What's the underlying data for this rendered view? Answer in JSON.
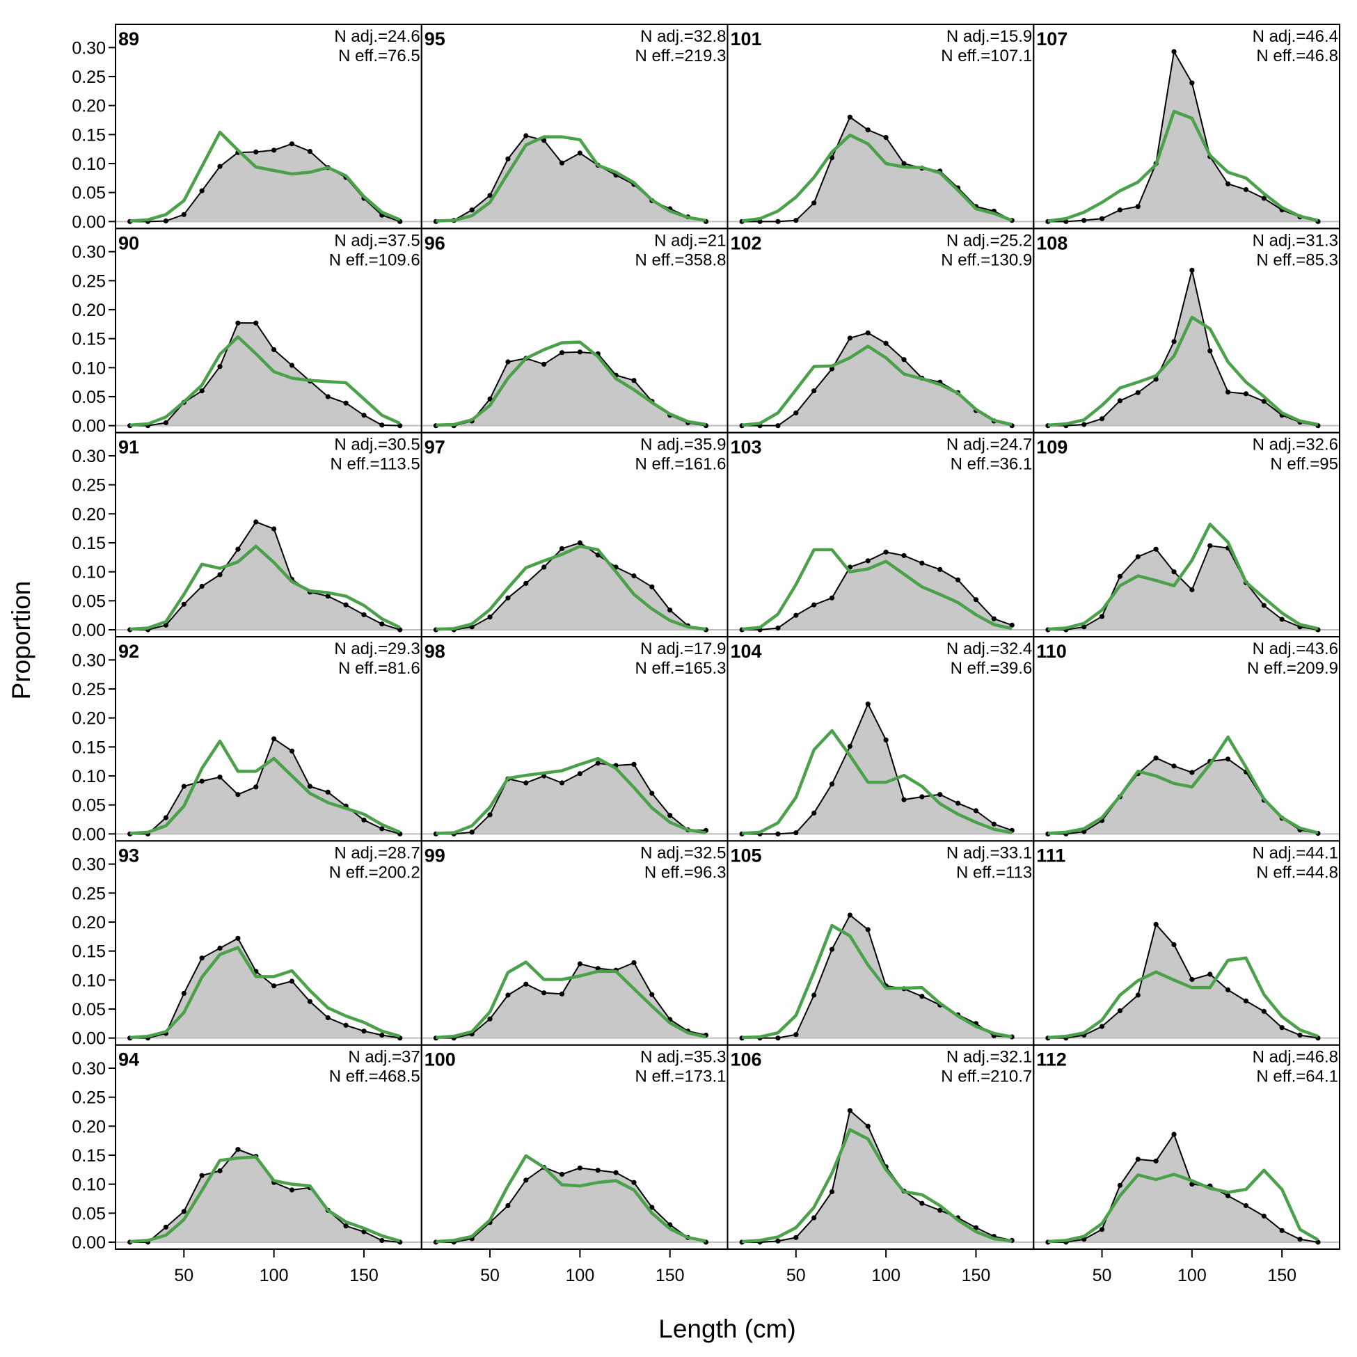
{
  "chart_data": {
    "type": "area",
    "xlabel": "Length (cm)",
    "ylabel": "Proportion",
    "xlim": [
      12,
      182
    ],
    "ylim": [
      -0.012,
      0.34
    ],
    "x_ticks": [
      50,
      100,
      150
    ],
    "y_ticks": [
      0,
      0.05,
      0.1,
      0.15,
      0.2,
      0.25,
      0.3
    ],
    "y_tick_labels": [
      "0.00",
      "0.05",
      "0.10",
      "0.15",
      "0.20",
      "0.25",
      "0.30"
    ],
    "x_tick_labels": [
      "50",
      "100",
      "150"
    ],
    "layout": {
      "rows": 6,
      "cols": 4,
      "order": "column-major"
    },
    "colors": {
      "observed_fill": "#c8c8c8",
      "observed_line": "#000000",
      "expected_line": "#4aa14a",
      "zero_line": "#bdbdbd"
    },
    "x": [
      20,
      30,
      40,
      50,
      60,
      70,
      80,
      90,
      100,
      110,
      120,
      130,
      140,
      150,
      160,
      170
    ],
    "panels": [
      {
        "id": "89",
        "n_adj": "N adj.=24.6",
        "n_eff": "N eff.=76.5",
        "observed": [
          0,
          0,
          0.001,
          0.012,
          0.053,
          0.095,
          0.119,
          0.12,
          0.123,
          0.134,
          0.121,
          0.093,
          0.076,
          0.04,
          0.011,
          0
        ],
        "expected": [
          0.001,
          0.003,
          0.012,
          0.036,
          0.095,
          0.154,
          0.123,
          0.094,
          0.088,
          0.082,
          0.085,
          0.093,
          0.079,
          0.043,
          0.016,
          0.003
        ]
      },
      {
        "id": "90",
        "n_adj": "N adj.=37.5",
        "n_eff": "N eff.=109.6",
        "observed": [
          0,
          0,
          0.005,
          0.04,
          0.06,
          0.102,
          0.177,
          0.177,
          0.131,
          0.104,
          0.077,
          0.05,
          0.039,
          0.018,
          0.001,
          0
        ],
        "expected": [
          0.001,
          0.003,
          0.015,
          0.041,
          0.07,
          0.123,
          0.153,
          0.124,
          0.093,
          0.082,
          0.078,
          0.076,
          0.074,
          0.046,
          0.018,
          0.004
        ]
      },
      {
        "id": "91",
        "n_adj": "N adj.=30.5",
        "n_eff": "N eff.=113.5",
        "observed": [
          0,
          0,
          0.008,
          0.044,
          0.075,
          0.095,
          0.139,
          0.186,
          0.174,
          0.087,
          0.065,
          0.058,
          0.043,
          0.026,
          0.01,
          0
        ],
        "expected": [
          0.001,
          0.003,
          0.014,
          0.061,
          0.113,
          0.106,
          0.117,
          0.144,
          0.116,
          0.083,
          0.067,
          0.064,
          0.058,
          0.042,
          0.019,
          0.004
        ]
      },
      {
        "id": "92",
        "n_adj": "N adj.=29.3",
        "n_eff": "N eff.=81.6",
        "observed": [
          0,
          0,
          0.028,
          0.082,
          0.091,
          0.098,
          0.068,
          0.081,
          0.164,
          0.143,
          0.082,
          0.072,
          0.048,
          0.024,
          0.009,
          0
        ],
        "expected": [
          0.001,
          0.003,
          0.014,
          0.048,
          0.113,
          0.16,
          0.108,
          0.108,
          0.13,
          0.1,
          0.07,
          0.054,
          0.044,
          0.034,
          0.016,
          0.003
        ]
      },
      {
        "id": "93",
        "n_adj": "N adj.=28.7",
        "n_eff": "N eff.=200.2",
        "observed": [
          0,
          0,
          0.008,
          0.077,
          0.138,
          0.155,
          0.172,
          0.115,
          0.09,
          0.098,
          0.063,
          0.035,
          0.022,
          0.012,
          0.005,
          0
        ],
        "expected": [
          0.001,
          0.003,
          0.011,
          0.044,
          0.105,
          0.144,
          0.156,
          0.106,
          0.106,
          0.116,
          0.082,
          0.052,
          0.038,
          0.027,
          0.012,
          0.003
        ]
      },
      {
        "id": "94",
        "n_adj": "N adj.=37",
        "n_eff": "N eff.=468.5",
        "observed": [
          0,
          0,
          0.026,
          0.053,
          0.115,
          0.123,
          0.16,
          0.148,
          0.103,
          0.09,
          0.094,
          0.055,
          0.028,
          0.018,
          0.003,
          0
        ],
        "expected": [
          0.001,
          0.003,
          0.012,
          0.039,
          0.089,
          0.141,
          0.145,
          0.147,
          0.106,
          0.1,
          0.097,
          0.055,
          0.035,
          0.024,
          0.011,
          0.002
        ]
      },
      {
        "id": "95",
        "n_adj": "N adj.=32.8",
        "n_eff": "N eff.=219.3",
        "observed": [
          0,
          0.002,
          0.02,
          0.045,
          0.108,
          0.148,
          0.14,
          0.101,
          0.118,
          0.097,
          0.08,
          0.064,
          0.036,
          0.022,
          0.008,
          0
        ],
        "expected": [
          0.001,
          0.002,
          0.01,
          0.033,
          0.083,
          0.132,
          0.146,
          0.146,
          0.141,
          0.097,
          0.085,
          0.067,
          0.037,
          0.018,
          0.007,
          0.002
        ]
      },
      {
        "id": "96",
        "n_adj": "N adj.=21",
        "n_eff": "N eff.=358.8",
        "observed": [
          0,
          0,
          0.008,
          0.046,
          0.11,
          0.116,
          0.106,
          0.126,
          0.127,
          0.124,
          0.087,
          0.078,
          0.042,
          0.018,
          0.005,
          0
        ],
        "expected": [
          0.001,
          0.002,
          0.01,
          0.035,
          0.082,
          0.116,
          0.131,
          0.143,
          0.144,
          0.119,
          0.081,
          0.062,
          0.04,
          0.02,
          0.007,
          0.002
        ]
      },
      {
        "id": "97",
        "n_adj": "N adj.=35.9",
        "n_eff": "N eff.=161.6",
        "observed": [
          0,
          0,
          0.005,
          0.022,
          0.055,
          0.08,
          0.108,
          0.14,
          0.15,
          0.129,
          0.108,
          0.093,
          0.074,
          0.034,
          0.007,
          0
        ],
        "expected": [
          0.001,
          0.002,
          0.01,
          0.035,
          0.072,
          0.107,
          0.119,
          0.13,
          0.144,
          0.138,
          0.1,
          0.061,
          0.036,
          0.016,
          0.005,
          0.001
        ]
      },
      {
        "id": "98",
        "n_adj": "N adj.=17.9",
        "n_eff": "N eff.=165.3",
        "observed": [
          0,
          0,
          0.003,
          0.033,
          0.095,
          0.088,
          0.1,
          0.088,
          0.104,
          0.122,
          0.118,
          0.12,
          0.07,
          0.032,
          0.007,
          0.006
        ],
        "expected": [
          0.001,
          0.002,
          0.014,
          0.046,
          0.096,
          0.101,
          0.105,
          0.109,
          0.12,
          0.13,
          0.113,
          0.08,
          0.045,
          0.02,
          0.007,
          0.002
        ]
      },
      {
        "id": "99",
        "n_adj": "N adj.=32.5",
        "n_eff": "N eff.=96.3",
        "observed": [
          0,
          0,
          0.007,
          0.033,
          0.074,
          0.093,
          0.078,
          0.076,
          0.128,
          0.12,
          0.117,
          0.13,
          0.075,
          0.032,
          0.012,
          0.005
        ],
        "expected": [
          0.001,
          0.003,
          0.011,
          0.045,
          0.113,
          0.131,
          0.101,
          0.101,
          0.107,
          0.115,
          0.115,
          0.085,
          0.055,
          0.026,
          0.009,
          0.002
        ]
      },
      {
        "id": "100",
        "n_adj": "N adj.=35.3",
        "n_eff": "N eff.=173.1",
        "observed": [
          0,
          0,
          0.006,
          0.034,
          0.063,
          0.107,
          0.129,
          0.117,
          0.128,
          0.124,
          0.12,
          0.103,
          0.06,
          0.03,
          0.008,
          0
        ],
        "expected": [
          0.001,
          0.003,
          0.01,
          0.038,
          0.097,
          0.149,
          0.129,
          0.099,
          0.097,
          0.103,
          0.106,
          0.09,
          0.05,
          0.023,
          0.008,
          0.002
        ]
      },
      {
        "id": "101",
        "n_adj": "N adj.=15.9",
        "n_eff": "N eff.=107.1",
        "observed": [
          0,
          0,
          0,
          0.002,
          0.032,
          0.11,
          0.18,
          0.158,
          0.145,
          0.1,
          0.092,
          0.087,
          0.058,
          0.026,
          0.018,
          0.002
        ],
        "expected": [
          0.001,
          0.005,
          0.018,
          0.042,
          0.076,
          0.12,
          0.149,
          0.134,
          0.1,
          0.094,
          0.093,
          0.084,
          0.054,
          0.022,
          0.014,
          0.002
        ]
      },
      {
        "id": "102",
        "n_adj": "N adj.=25.2",
        "n_eff": "N eff.=130.9",
        "observed": [
          0,
          0,
          0,
          0.022,
          0.06,
          0.098,
          0.151,
          0.16,
          0.142,
          0.114,
          0.082,
          0.075,
          0.057,
          0.026,
          0.008,
          0
        ],
        "expected": [
          0.001,
          0.004,
          0.022,
          0.062,
          0.102,
          0.103,
          0.117,
          0.137,
          0.117,
          0.089,
          0.081,
          0.071,
          0.056,
          0.028,
          0.009,
          0.002
        ]
      },
      {
        "id": "103",
        "n_adj": "N adj.=24.7",
        "n_eff": "N eff.=36.1",
        "observed": [
          0,
          0,
          0.003,
          0.025,
          0.043,
          0.055,
          0.108,
          0.119,
          0.134,
          0.128,
          0.115,
          0.104,
          0.086,
          0.052,
          0.019,
          0.008
        ],
        "expected": [
          0.001,
          0.004,
          0.027,
          0.078,
          0.138,
          0.138,
          0.1,
          0.105,
          0.118,
          0.096,
          0.074,
          0.061,
          0.047,
          0.026,
          0.009,
          0.002
        ]
      },
      {
        "id": "104",
        "n_adj": "N adj.=32.4",
        "n_eff": "N eff.=39.6",
        "observed": [
          0,
          0,
          0,
          0.002,
          0.036,
          0.086,
          0.151,
          0.224,
          0.162,
          0.059,
          0.064,
          0.068,
          0.053,
          0.04,
          0.017,
          0.006
        ],
        "expected": [
          0.001,
          0.003,
          0.019,
          0.063,
          0.145,
          0.178,
          0.135,
          0.089,
          0.089,
          0.101,
          0.082,
          0.052,
          0.034,
          0.02,
          0.008,
          0.002
        ]
      },
      {
        "id": "105",
        "n_adj": "N adj.=33.1",
        "n_eff": "N eff.=113",
        "observed": [
          0,
          0,
          0,
          0.006,
          0.074,
          0.153,
          0.212,
          0.187,
          0.09,
          0.085,
          0.072,
          0.057,
          0.04,
          0.025,
          0.004,
          0.002
        ],
        "expected": [
          0.001,
          0.002,
          0.009,
          0.039,
          0.114,
          0.194,
          0.176,
          0.126,
          0.086,
          0.086,
          0.087,
          0.06,
          0.038,
          0.02,
          0.008,
          0.002
        ]
      },
      {
        "id": "106",
        "n_adj": "N adj.=32.1",
        "n_eff": "N eff.=210.7",
        "observed": [
          0,
          0,
          0.002,
          0.008,
          0.042,
          0.087,
          0.227,
          0.2,
          0.13,
          0.088,
          0.067,
          0.055,
          0.042,
          0.025,
          0.01,
          0.003
        ],
        "expected": [
          0.001,
          0.003,
          0.009,
          0.025,
          0.06,
          0.119,
          0.194,
          0.178,
          0.125,
          0.087,
          0.082,
          0.063,
          0.038,
          0.018,
          0.006,
          0.002
        ]
      },
      {
        "id": "107",
        "n_adj": "N adj.=46.4",
        "n_eff": "N eff.=46.8",
        "observed": [
          0,
          0,
          0.002,
          0.005,
          0.02,
          0.026,
          0.1,
          0.293,
          0.239,
          0.112,
          0.065,
          0.055,
          0.04,
          0.02,
          0.008,
          0
        ],
        "expected": [
          0.001,
          0.005,
          0.016,
          0.033,
          0.053,
          0.068,
          0.098,
          0.19,
          0.178,
          0.114,
          0.085,
          0.075,
          0.048,
          0.024,
          0.009,
          0.002
        ]
      },
      {
        "id": "108",
        "n_adj": "N adj.=31.3",
        "n_eff": "N eff.=85.3",
        "observed": [
          0,
          0,
          0.002,
          0.012,
          0.043,
          0.057,
          0.08,
          0.145,
          0.268,
          0.129,
          0.058,
          0.055,
          0.042,
          0.018,
          0.006,
          0
        ],
        "expected": [
          0.001,
          0.003,
          0.01,
          0.035,
          0.065,
          0.075,
          0.086,
          0.12,
          0.187,
          0.167,
          0.11,
          0.075,
          0.05,
          0.022,
          0.008,
          0.002
        ]
      },
      {
        "id": "109",
        "n_adj": "N adj.=32.6",
        "n_eff": "N eff.=95",
        "observed": [
          0,
          0,
          0.005,
          0.023,
          0.092,
          0.126,
          0.139,
          0.1,
          0.069,
          0.145,
          0.141,
          0.081,
          0.042,
          0.018,
          0.005,
          0
        ],
        "expected": [
          0.001,
          0.003,
          0.011,
          0.034,
          0.076,
          0.093,
          0.085,
          0.076,
          0.12,
          0.182,
          0.151,
          0.082,
          0.055,
          0.029,
          0.009,
          0.002
        ]
      },
      {
        "id": "110",
        "n_adj": "N adj.=43.6",
        "n_eff": "N eff.=209.9",
        "observed": [
          0,
          0,
          0.004,
          0.023,
          0.064,
          0.104,
          0.131,
          0.117,
          0.106,
          0.125,
          0.129,
          0.107,
          0.058,
          0.027,
          0.007,
          0.001
        ],
        "expected": [
          0.001,
          0.003,
          0.009,
          0.028,
          0.065,
          0.108,
          0.1,
          0.087,
          0.081,
          0.12,
          0.167,
          0.115,
          0.06,
          0.028,
          0.01,
          0.002
        ]
      },
      {
        "id": "111",
        "n_adj": "N adj.=44.1",
        "n_eff": "N eff.=44.8",
        "observed": [
          0,
          0,
          0.005,
          0.02,
          0.047,
          0.074,
          0.196,
          0.161,
          0.101,
          0.11,
          0.083,
          0.064,
          0.046,
          0.018,
          0.005,
          0
        ],
        "expected": [
          0.001,
          0.003,
          0.009,
          0.031,
          0.074,
          0.099,
          0.114,
          0.1,
          0.087,
          0.087,
          0.134,
          0.138,
          0.075,
          0.037,
          0.014,
          0.003
        ]
      },
      {
        "id": "112",
        "n_adj": "N adj.=46.8",
        "n_eff": "N eff.=64.1",
        "observed": [
          0,
          0,
          0.005,
          0.022,
          0.098,
          0.143,
          0.14,
          0.186,
          0.1,
          0.097,
          0.08,
          0.063,
          0.045,
          0.02,
          0.005,
          0
        ],
        "expected": [
          0.001,
          0.003,
          0.01,
          0.032,
          0.08,
          0.116,
          0.108,
          0.117,
          0.106,
          0.093,
          0.086,
          0.091,
          0.124,
          0.091,
          0.022,
          0.004
        ]
      }
    ]
  }
}
